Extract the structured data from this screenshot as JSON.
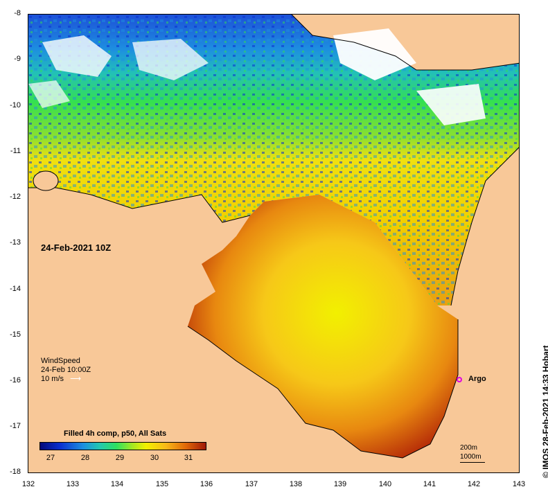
{
  "map": {
    "date_label": "24-Feb-2021 10Z",
    "wind": {
      "title": "WindSpeed",
      "time": "24-Feb 10:00Z",
      "scale": "10 m/s"
    },
    "argo_label": "Argo",
    "colorbar": {
      "title": "Filled 4h comp, p50, All Sats",
      "ticks": [
        "27",
        "28",
        "29",
        "30",
        "31"
      ]
    },
    "scale": {
      "depth1": "200m",
      "depth2": "1000m"
    },
    "credit": "©  IMOS 28-Feb-2021 14:33 Hobart",
    "axes": {
      "lon_ticks": [
        "132",
        "133",
        "134",
        "135",
        "136",
        "137",
        "138",
        "139",
        "140",
        "141",
        "142",
        "143"
      ],
      "lat_ticks": [
        "-8",
        "-9",
        "-10",
        "-11",
        "-12",
        "-13",
        "-14",
        "-15",
        "-16",
        "-17",
        "-18"
      ],
      "lon_range": [
        132,
        143
      ],
      "lat_range": [
        -18,
        -8
      ]
    },
    "colors": {
      "land": "#f8c898",
      "cool": "#0a2fd0",
      "warm": "#f2f000",
      "hot": "#a01808"
    }
  }
}
